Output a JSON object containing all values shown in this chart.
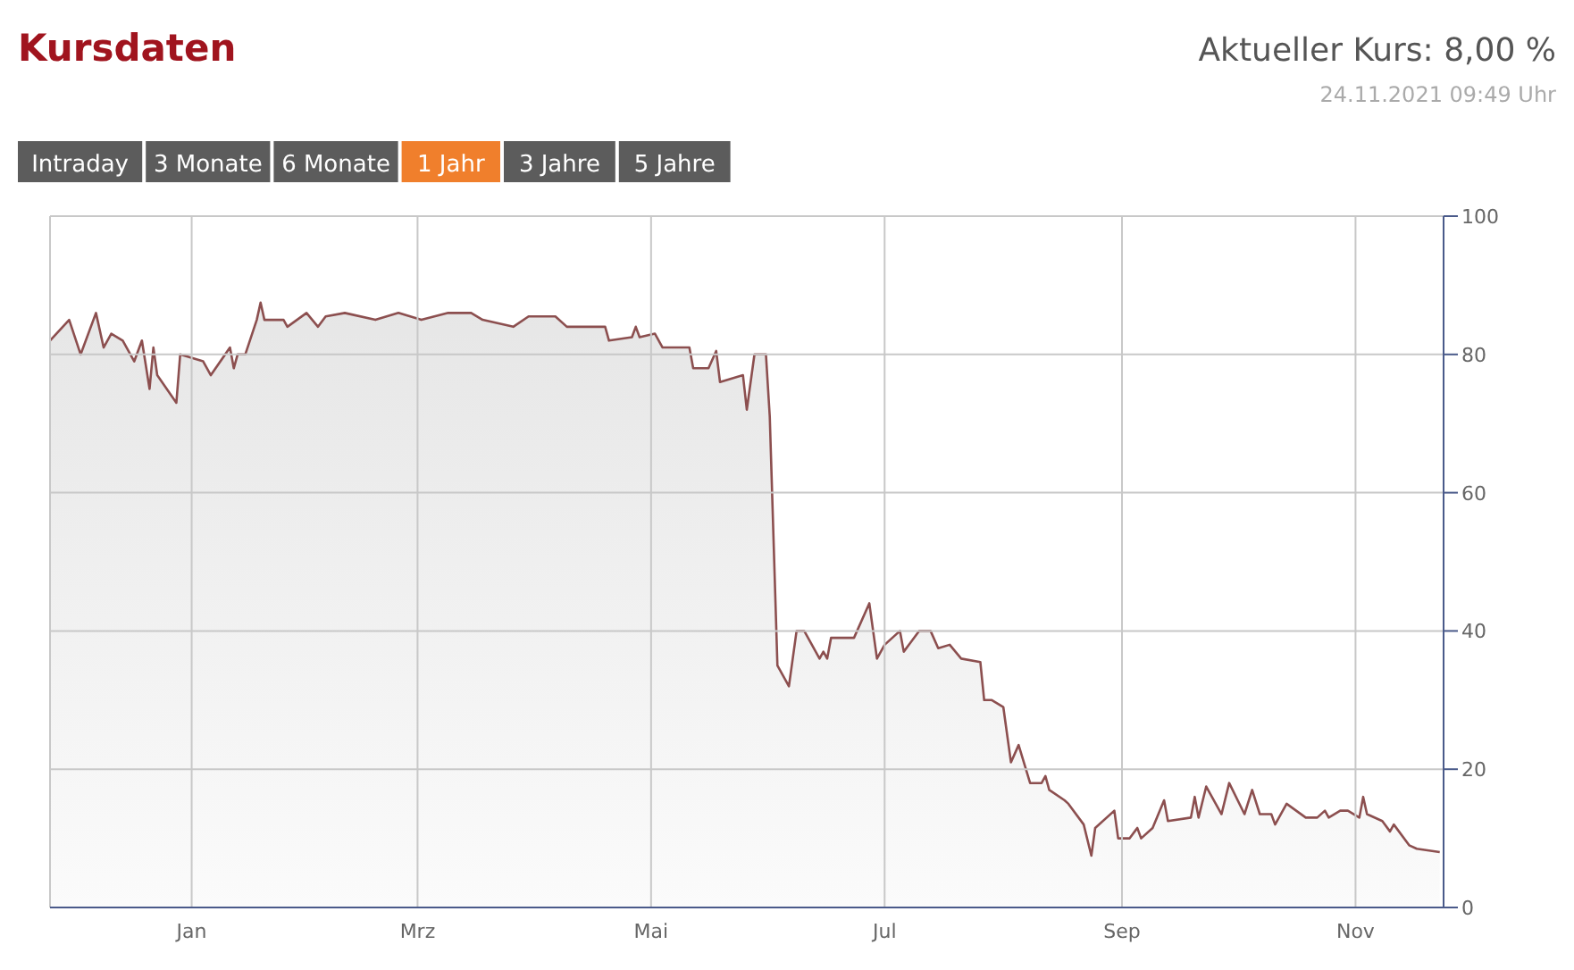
{
  "chart_data": {
    "type": "area",
    "title": "Kursdaten",
    "subtitle": "Aktueller Kurs: 8,00 %",
    "annotations": [
      "24.11.2021 09:49 Uhr",
      "Intraday",
      "3 Monate",
      "6 Monate",
      "1 Jahr",
      "3 Jahre",
      "5 Jahre"
    ],
    "x": [
      "2020-11-25",
      "2020-11-30",
      "2020-12-03",
      "2020-12-07",
      "2020-12-09",
      "2020-12-11",
      "2020-12-14",
      "2020-12-17",
      "2020-12-19",
      "2020-12-21",
      "2020-12-22",
      "2020-12-23",
      "2020-12-28",
      "2020-12-29",
      "2021-01-04",
      "2021-01-06",
      "2021-01-11",
      "2021-01-12",
      "2021-01-13",
      "2021-01-15",
      "2021-01-18",
      "2021-01-19",
      "2021-01-20",
      "2021-01-25",
      "2021-01-26",
      "2021-01-31",
      "2021-02-03",
      "2021-02-05",
      "2021-02-10",
      "2021-02-18",
      "2021-02-24",
      "2021-03-02",
      "2021-03-09",
      "2021-03-15",
      "2021-03-18",
      "2021-03-26",
      "2021-03-30",
      "2021-04-06",
      "2021-04-09",
      "2021-04-19",
      "2021-04-20",
      "2021-04-26",
      "2021-04-27",
      "2021-04-28",
      "2021-05-02",
      "2021-05-04",
      "2021-05-11",
      "2021-05-12",
      "2021-05-16",
      "2021-05-18",
      "2021-05-19",
      "2021-05-25",
      "2021-05-26",
      "2021-05-28",
      "2021-05-30",
      "2021-05-31",
      "2021-06-01",
      "2021-06-03",
      "2021-06-06",
      "2021-06-08",
      "2021-06-10",
      "2021-06-14",
      "2021-06-15",
      "2021-06-16",
      "2021-06-17",
      "2021-06-23",
      "2021-06-27",
      "2021-06-29",
      "2021-07-01",
      "2021-07-05",
      "2021-07-06",
      "2021-07-10",
      "2021-07-13",
      "2021-07-15",
      "2021-07-18",
      "2021-07-21",
      "2021-07-26",
      "2021-07-27",
      "2021-07-29",
      "2021-08-01",
      "2021-08-03",
      "2021-08-05",
      "2021-08-08",
      "2021-08-11",
      "2021-08-12",
      "2021-08-13",
      "2021-08-17",
      "2021-08-18",
      "2021-08-22",
      "2021-08-24",
      "2021-08-25",
      "2021-08-30",
      "2021-08-31",
      "2021-09-03",
      "2021-09-05",
      "2021-09-06",
      "2021-09-09",
      "2021-09-12",
      "2021-09-13",
      "2021-09-19",
      "2021-09-20",
      "2021-09-21",
      "2021-09-23",
      "2021-09-27",
      "2021-09-29",
      "2021-10-03",
      "2021-10-05",
      "2021-10-07",
      "2021-10-10",
      "2021-10-11",
      "2021-10-14",
      "2021-10-19",
      "2021-10-22",
      "2021-10-24",
      "2021-10-25",
      "2021-10-28",
      "2021-10-30",
      "2021-11-02",
      "2021-11-03",
      "2021-11-04",
      "2021-11-08",
      "2021-11-10",
      "2021-11-11",
      "2021-11-15",
      "2021-11-17",
      "2021-11-23"
    ],
    "series": [
      {
        "color": "#8c4f4f",
        "values": [
          82,
          85,
          80,
          86,
          81,
          83,
          82,
          79,
          82,
          75,
          81,
          77,
          73,
          80,
          79,
          77,
          81,
          78,
          80,
          80,
          85,
          87.5,
          85,
          85,
          84,
          86,
          84,
          85.5,
          86,
          85,
          86,
          85,
          86,
          86,
          85,
          84,
          85.5,
          85.5,
          84,
          84,
          82,
          82.5,
          84,
          82.5,
          83,
          81,
          81,
          78,
          78,
          80.5,
          76,
          77,
          72,
          80,
          80,
          80,
          71,
          35,
          32,
          40,
          40,
          36,
          37,
          36,
          39,
          39,
          44,
          36,
          38,
          40,
          37,
          40,
          40,
          37.5,
          38,
          36,
          35.5,
          30,
          30,
          29,
          21,
          23.5,
          18,
          18,
          19,
          17,
          15.5,
          15,
          12,
          7.5,
          11.5,
          14,
          10,
          10,
          11.5,
          10,
          11.5,
          15.5,
          12.5,
          13,
          16,
          13,
          17.5,
          13.5,
          18,
          13.5,
          17,
          13.5,
          13.5,
          12,
          15,
          13,
          13,
          14,
          13,
          14,
          14,
          13,
          16,
          13.5,
          12.5,
          11,
          12,
          9,
          8.5,
          8
        ]
      }
    ],
    "xlim": [
      "2020-11-25",
      "2021-11-24"
    ],
    "xticks": [
      {
        "value": "2021-01-01",
        "label": "Jan"
      },
      {
        "value": "2021-03-01",
        "label": "Mrz"
      },
      {
        "value": "2021-05-01",
        "label": "Mai"
      },
      {
        "value": "2021-07-01",
        "label": "Jul"
      },
      {
        "value": "2021-09-01",
        "label": "Sep"
      },
      {
        "value": "2021-11-01",
        "label": "Nov"
      }
    ],
    "ylim": [
      0,
      100
    ],
    "yticks": [
      0,
      20,
      40,
      60,
      80,
      100
    ],
    "grid": true
  }
}
